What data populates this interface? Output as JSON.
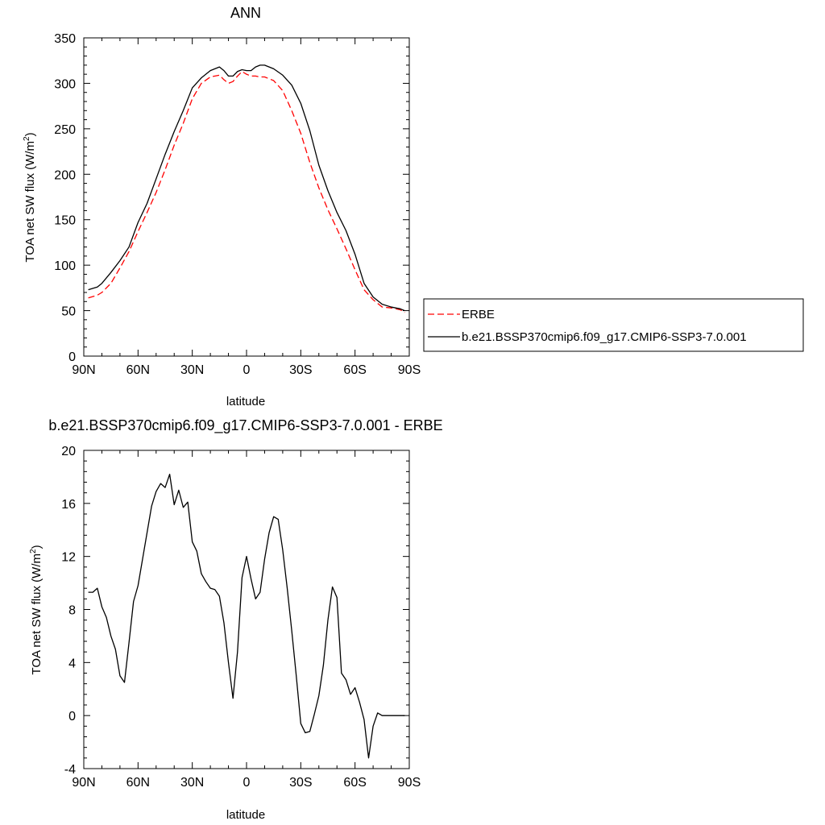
{
  "chart_data": [
    {
      "type": "line",
      "title": "ANN",
      "xlabel": "latitude",
      "ylabel": "TOA net SW flux (W/m",
      "ylabel_sup": "2",
      "ylabel_end": ")",
      "xlim": [
        -90,
        90
      ],
      "ylim": [
        0,
        350
      ],
      "xticks": [
        -90,
        -60,
        -30,
        0,
        30,
        60,
        90
      ],
      "xtick_labels": [
        "90N",
        "60N",
        "30N",
        "0",
        "30S",
        "60S",
        "90S"
      ],
      "yticks": [
        0,
        50,
        100,
        150,
        200,
        250,
        300,
        350
      ],
      "ytick_labels": [
        "0",
        "50",
        "100",
        "150",
        "200",
        "250",
        "300",
        "350"
      ],
      "legend_position": "right",
      "series": [
        {
          "name": "ERBE",
          "color": "#ff0000",
          "dash": true,
          "x": [
            -87.5,
            -82.5,
            -80,
            -75,
            -70,
            -65,
            -60,
            -55,
            -50,
            -45,
            -40,
            -35,
            -30,
            -25,
            -20,
            -15,
            -12.5,
            -10,
            -7.5,
            -5,
            -2.5,
            0,
            2.5,
            5,
            7.5,
            10,
            12.5,
            15,
            20,
            25,
            30,
            35,
            40,
            45,
            50,
            55,
            60,
            65,
            70,
            75,
            80,
            85,
            87.5
          ],
          "values": [
            64,
            67,
            70,
            80,
            97,
            115,
            137,
            158,
            180,
            205,
            232,
            256,
            283,
            300,
            307,
            309,
            304,
            300,
            302,
            308,
            313,
            310,
            308,
            308,
            307,
            307,
            305,
            303,
            292,
            270,
            245,
            213,
            185,
            161,
            140,
            118,
            95,
            73,
            62,
            54,
            53,
            51,
            48
          ]
        },
        {
          "name": "b.e21.BSSP370cmip6.f09_g17.CMIP6-SSP3-7.0.001",
          "color": "#000000",
          "dash": false,
          "x": [
            -87.5,
            -82.5,
            -80,
            -75,
            -70,
            -65,
            -60,
            -55,
            -50,
            -45,
            -40,
            -35,
            -30,
            -25,
            -20,
            -15,
            -12.5,
            -10,
            -7.5,
            -5,
            -2.5,
            0,
            2.5,
            5,
            7.5,
            10,
            12.5,
            15,
            20,
            25,
            30,
            35,
            40,
            45,
            50,
            55,
            60,
            65,
            70,
            75,
            80,
            85,
            87.5
          ],
          "values": [
            73,
            76,
            80,
            92,
            105,
            120,
            147,
            168,
            195,
            222,
            247,
            270,
            295,
            306,
            314,
            318,
            314,
            308,
            308,
            313,
            315,
            314,
            314,
            318,
            320,
            320,
            318,
            316,
            309,
            298,
            278,
            248,
            210,
            182,
            158,
            138,
            112,
            80,
            65,
            57,
            54,
            52,
            50
          ]
        }
      ]
    },
    {
      "type": "line",
      "title": "b.e21.BSSP370cmip6.f09_g17.CMIP6-SSP3-7.0.001 - ERBE",
      "xlabel": "latitude",
      "ylabel": "TOA net SW flux (W/m",
      "ylabel_sup": "2",
      "ylabel_end": ")",
      "xlim": [
        -90,
        90
      ],
      "ylim": [
        -4,
        20
      ],
      "xticks": [
        -90,
        -60,
        -30,
        0,
        30,
        60,
        90
      ],
      "xtick_labels": [
        "90N",
        "60N",
        "30N",
        "0",
        "30S",
        "60S",
        "90S"
      ],
      "yticks": [
        -4,
        0,
        4,
        8,
        12,
        16,
        20
      ],
      "ytick_labels": [
        "-4",
        "0",
        "4",
        "8",
        "12",
        "16",
        "20"
      ],
      "series": [
        {
          "color": "#000000",
          "dash": false,
          "x": [
            -87.5,
            -85,
            -82.5,
            -80,
            -77.5,
            -75,
            -72.5,
            -70,
            -67.5,
            -65,
            -62.5,
            -60,
            -57.5,
            -55,
            -52.5,
            -50,
            -47.5,
            -45,
            -42.5,
            -40,
            -37.5,
            -35,
            -32.5,
            -30,
            -27.5,
            -25,
            -22.5,
            -20,
            -17.5,
            -15,
            -12.5,
            -10,
            -7.5,
            -5,
            -2.5,
            0,
            2.5,
            5,
            7.5,
            10,
            12.5,
            15,
            17.5,
            20,
            22.5,
            25,
            27.5,
            30,
            32.5,
            35,
            37.5,
            40,
            42.5,
            45,
            47.5,
            50,
            52.5,
            55,
            57.5,
            60,
            62.5,
            65,
            67.5,
            70,
            72.5,
            75,
            77.5,
            80,
            82.5,
            85,
            87.5
          ],
          "values": [
            9.3,
            9.3,
            9.6,
            8.2,
            7.4,
            6.0,
            5.0,
            3.0,
            2.5,
            5.5,
            8.6,
            9.8,
            11.8,
            13.8,
            15.8,
            16.9,
            17.5,
            17.2,
            18.2,
            15.9,
            17.0,
            15.7,
            16.1,
            13.1,
            12.4,
            10.7,
            10.1,
            9.6,
            9.5,
            9.0,
            7.0,
            4.0,
            1.3,
            4.8,
            10.4,
            12.0,
            10.3,
            8.8,
            9.3,
            11.8,
            13.8,
            15.0,
            14.8,
            12.5,
            9.6,
            6.4,
            3.0,
            -0.6,
            -1.3,
            -1.2,
            0.1,
            1.5,
            3.8,
            7.2,
            9.7,
            8.9,
            3.2,
            2.7,
            1.6,
            2.1,
            1.0,
            -0.3,
            -3.2,
            -0.8,
            0.2,
            0.0,
            0.0,
            0.0,
            0.0,
            0.0,
            0.0
          ]
        }
      ]
    }
  ]
}
